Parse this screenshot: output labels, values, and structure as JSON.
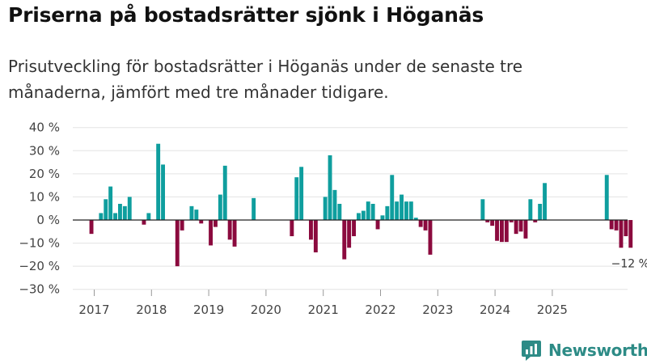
{
  "chart_data": {
    "type": "bar",
    "title": "Priserna på bostadsrätter sjönk i Höganäs",
    "subtitle": "Prisutveckling för bostadsrätter i Höganäs under de senaste tre månaderna, jämfört med tre månader tidigare.",
    "xlabel": "",
    "ylabel": "",
    "ylim": [
      -30,
      40
    ],
    "y_ticks": [
      40,
      30,
      20,
      10,
      0,
      -10,
      -20,
      -30
    ],
    "y_tick_labels": [
      "40 %",
      "30 %",
      "20 %",
      "10 %",
      "0 %",
      "−10 %",
      "−20 %",
      "−30 %"
    ],
    "x_ticks": [
      "2017",
      "2018",
      "2019",
      "2020",
      "2021",
      "2022",
      "2023",
      "2024",
      "2025"
    ],
    "x_start": "2016-10",
    "grid": true,
    "positive_color": "#0f9e9e",
    "negative_color": "#8b0a3e",
    "values": [
      null,
      null,
      -6,
      null,
      3,
      9,
      14.5,
      3,
      7,
      6,
      10,
      null,
      null,
      -2,
      3,
      null,
      33,
      24,
      null,
      null,
      -20,
      -4.5,
      null,
      6,
      4.5,
      -1.5,
      null,
      -11,
      -3,
      11,
      23.5,
      -8.5,
      -11.5,
      null,
      null,
      null,
      9.5,
      null,
      null,
      null,
      null,
      null,
      null,
      null,
      -7,
      18.5,
      23,
      null,
      -8.5,
      -14,
      null,
      10,
      28,
      13,
      7,
      -17,
      -12,
      -7,
      3,
      4,
      8,
      7,
      -4,
      2,
      6,
      19.5,
      8,
      11,
      8,
      8,
      1,
      -3,
      -4.5,
      -15,
      null,
      null,
      null,
      null,
      null,
      null,
      null,
      null,
      null,
      null,
      9,
      -1,
      -2.5,
      -9,
      -9.5,
      -9.5,
      -1,
      -6,
      -5,
      -8,
      9,
      -1,
      7,
      16,
      null,
      null,
      null,
      null,
      null,
      null,
      null,
      null,
      null,
      null,
      null,
      null,
      19.5,
      -4,
      -4.5,
      -12,
      -7,
      -12
    ],
    "last_value_label": "−12 %"
  },
  "brand": {
    "name": "Newsworthy",
    "icon": "newsworthy-logo-icon",
    "color": "#2d8b86"
  }
}
